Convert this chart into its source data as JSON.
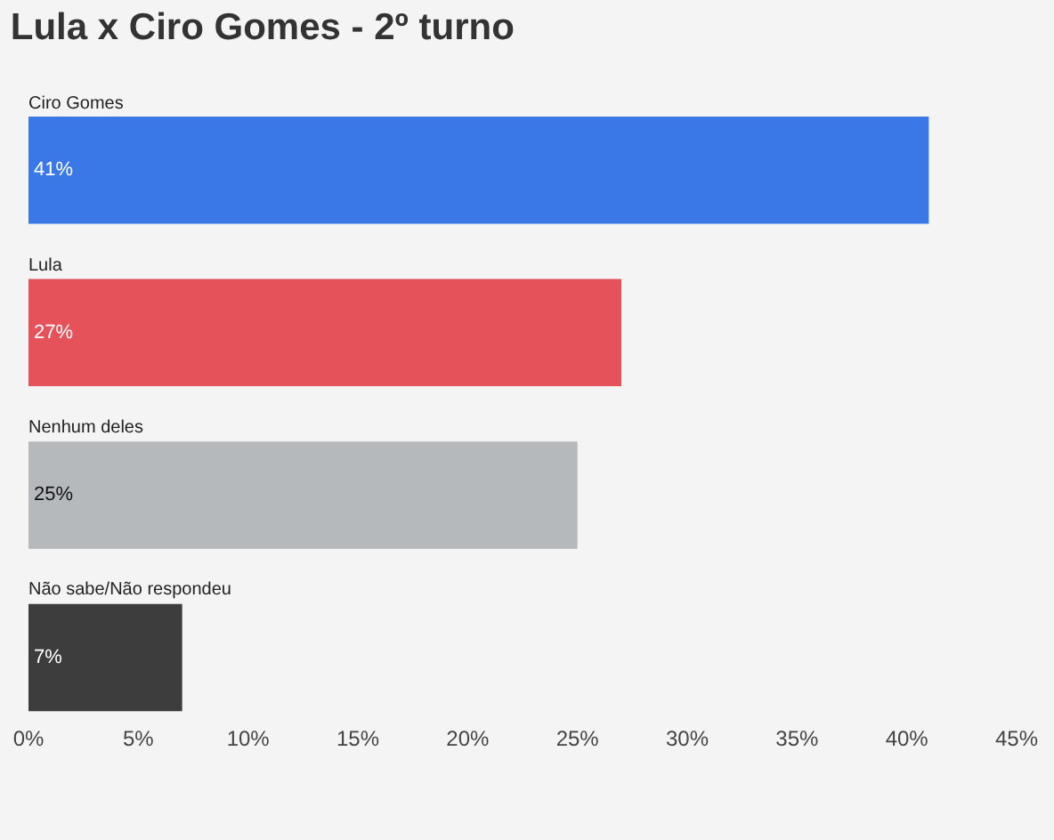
{
  "chart_data": {
    "type": "bar",
    "orientation": "horizontal",
    "title": "Lula x Ciro Gomes - 2º turno",
    "categories": [
      "Ciro Gomes",
      "Lula",
      "Nenhum deles",
      "Não sabe/Não respondeu"
    ],
    "values": [
      41,
      27,
      25,
      7
    ],
    "colors": [
      "#3b78e7",
      "#e5525a",
      "#b5b9bb",
      "#3d3d3d"
    ],
    "value_labels": [
      "41%",
      "27%",
      "25%",
      "7%"
    ],
    "xlim": [
      0,
      45
    ],
    "xticks": [
      {
        "value": 0,
        "label": "0%"
      },
      {
        "value": 5,
        "label": "5%"
      },
      {
        "value": 10,
        "label": "10%"
      },
      {
        "value": 15,
        "label": "15%"
      },
      {
        "value": 20,
        "label": "20%"
      },
      {
        "value": 25,
        "label": "25%"
      },
      {
        "value": 30,
        "label": "30%"
      },
      {
        "value": 35,
        "label": "35%"
      },
      {
        "value": 40,
        "label": "40%"
      },
      {
        "value": 45,
        "label": "45%"
      }
    ],
    "grid": false
  }
}
